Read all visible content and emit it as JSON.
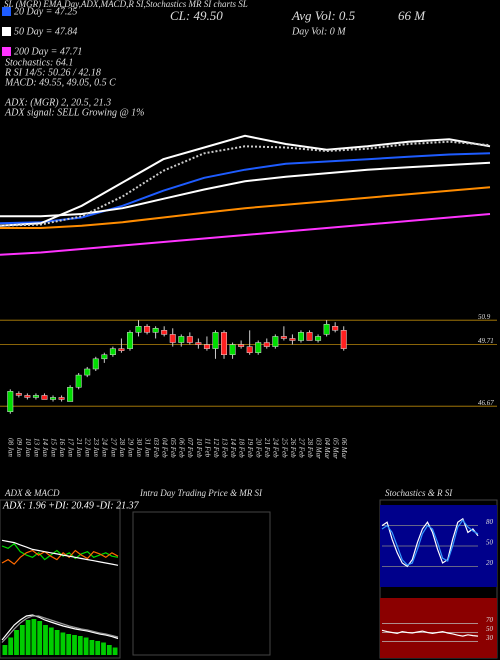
{
  "header": {
    "title": "SL (MGR) EMA,Day,ADX,MACD,R SI,Stochastics MR SI charts SL",
    "close": "CL: 49.50",
    "avg_volume": "Avg Vol: 0.5",
    "avg_volume_unit": "66  M",
    "day_volume": "Day Vol: 0  M",
    "stochastics": "Stochastics: 64.1",
    "rsi": "R          SI 14/5: 50.26 / 42.18",
    "macd": "MACD: 49.55, 49.05, 0.5 C",
    "adx": "ADX:                 (MGR) 2, 20.5, 21.3",
    "adx_signal": "ADX  signal: SELL Growing @ 1%",
    "intraday_title": "Intra Day Trading Price  & MR         SI"
  },
  "chart_data": [
    {
      "type": "line",
      "ylim": [
        40,
        52
      ],
      "series": [
        {
          "name": "20 Day = 47.25",
          "color": "#1e5cff",
          "values": [
            44.0,
            44.1,
            44.5,
            45.5,
            46.8,
            47.9,
            48.6,
            49.1,
            49.3,
            49.5,
            49.7,
            49.9,
            50.0
          ]
        },
        {
          "name": "50 Day = 47.84",
          "color": "#ffffff",
          "values": [
            44.6,
            44.6,
            44.8,
            45.3,
            46.1,
            46.9,
            47.6,
            48.0,
            48.3,
            48.6,
            48.8,
            49.0,
            49.2
          ]
        },
        {
          "name": "200 Day = 47.71",
          "color": "#ff33ff",
          "values": [
            41.3,
            41.5,
            41.8,
            42.1,
            42.4,
            42.7,
            43.0,
            43.3,
            43.6,
            43.9,
            44.2,
            44.5,
            44.8
          ]
        },
        {
          "color": "#ffffff",
          "values": [
            43.8,
            44.0,
            45.5,
            47.5,
            49.5,
            50.5,
            51.5,
            50.8,
            50.3,
            50.6,
            51.0,
            51.2,
            50.6
          ]
        },
        {
          "color": "#cccccc",
          "style": "dotted",
          "values": [
            43.8,
            43.9,
            44.6,
            46.3,
            48.5,
            50.0,
            50.6,
            50.5,
            50.2,
            50.4,
            50.8,
            51.0,
            50.7
          ]
        },
        {
          "color": "#ff8c00",
          "values": [
            43.6,
            43.6,
            43.8,
            44.1,
            44.5,
            44.9,
            45.3,
            45.6,
            45.9,
            46.2,
            46.5,
            46.8,
            47.1
          ]
        }
      ]
    },
    {
      "type": "candlestick",
      "ylim": [
        45.5,
        51.4
      ],
      "yticks": [
        50.9,
        49.71,
        46.67
      ],
      "grid_color": "#b8860b",
      "up_color": "#00dd00",
      "down_color": "#ff2020",
      "categories": [
        "08 Jan",
        "09 Jan",
        "10 Jan",
        "13 Jan",
        "14 Jan",
        "15 Jan",
        "16 Jan",
        "17 Jan",
        "21 Jan",
        "22 Jan",
        "23 Jan",
        "24 Jan",
        "27 Jan",
        "28 Jan",
        "29 Jan",
        "30 Jan",
        "31 Jan",
        "03 Feb",
        "04 Feb",
        "05 Feb",
        "06 Feb",
        "07 Feb",
        "10 Feb",
        "11 Feb",
        "12 Feb",
        "13 Feb",
        "14 Feb",
        "18 Feb",
        "19 Feb",
        "20 Feb",
        "21 Feb",
        "24 Feb",
        "25 Feb",
        "26 Feb",
        "27 Feb",
        "28 Feb",
        "03 Mar",
        "04 Mar",
        "05 Mar",
        "06 Mar"
      ],
      "open": [
        46.4,
        47.3,
        47.2,
        47.1,
        47.2,
        47.0,
        47.1,
        46.9,
        47.6,
        48.2,
        48.5,
        49.0,
        49.2,
        49.5,
        49.5,
        50.3,
        50.6,
        50.3,
        50.4,
        50.2,
        49.8,
        50.1,
        49.8,
        49.7,
        49.5,
        50.3,
        49.2,
        49.7,
        49.6,
        49.3,
        49.8,
        49.6,
        50.1,
        50.0,
        49.9,
        50.3,
        49.9,
        50.2,
        50.6,
        50.4
      ],
      "high": [
        47.5,
        47.4,
        47.3,
        47.3,
        47.3,
        47.2,
        47.2,
        47.7,
        48.3,
        48.6,
        49.1,
        49.3,
        49.6,
        50.0,
        50.4,
        50.9,
        50.7,
        50.6,
        50.6,
        50.5,
        50.2,
        50.3,
        50.0,
        50.1,
        50.4,
        50.4,
        49.8,
        49.9,
        50.4,
        49.9,
        50.0,
        50.2,
        50.6,
        50.2,
        50.4,
        50.4,
        50.2,
        50.9,
        50.8,
        50.6
      ],
      "low": [
        46.3,
        47.1,
        47.0,
        47.0,
        47.0,
        46.9,
        46.9,
        46.9,
        47.5,
        48.1,
        48.4,
        48.8,
        49.1,
        49.3,
        49.4,
        50.1,
        50.2,
        50.0,
        50.1,
        49.6,
        49.6,
        49.7,
        49.5,
        49.4,
        49.0,
        49.0,
        49.0,
        49.5,
        49.2,
        49.2,
        49.5,
        49.5,
        49.9,
        49.7,
        49.8,
        49.9,
        49.8,
        50.1,
        50.3,
        49.4
      ],
      "close": [
        47.4,
        47.2,
        47.1,
        47.2,
        47.0,
        47.1,
        47.0,
        47.6,
        48.2,
        48.5,
        49.0,
        49.2,
        49.5,
        49.4,
        50.3,
        50.6,
        50.3,
        50.5,
        50.2,
        49.8,
        50.1,
        49.8,
        49.7,
        49.5,
        50.3,
        49.2,
        49.7,
        49.6,
        49.3,
        49.8,
        49.6,
        50.1,
        50.0,
        49.9,
        50.3,
        49.9,
        50.1,
        50.7,
        50.4,
        49.5
      ]
    },
    {
      "type": "line",
      "title": "ADX  & MACD",
      "annotation": "ADX: 1.96  +DI: 20.49  -DI: 21.37",
      "ylim": [
        0,
        60
      ],
      "series": [
        {
          "color": "#00dd00",
          "values": [
            30,
            28,
            32,
            25,
            22,
            20,
            24,
            18,
            22,
            26,
            21,
            24,
            19,
            23,
            25,
            20,
            22,
            24,
            21,
            20
          ]
        },
        {
          "color": "#ff6a00",
          "values": [
            15,
            18,
            14,
            20,
            24,
            26,
            22,
            25,
            21,
            18,
            24,
            20,
            26,
            22,
            19,
            25,
            23,
            20,
            24,
            21
          ]
        },
        {
          "color": "#ffffff",
          "values": [
            35,
            34,
            33,
            31,
            29,
            27,
            26,
            25,
            24,
            23,
            22,
            21,
            20,
            19,
            18,
            17,
            16,
            15,
            14,
            13
          ]
        }
      ]
    },
    {
      "type": "bar",
      "ylim": [
        0,
        1
      ],
      "color": "#00cc00",
      "values": [
        0.2,
        0.35,
        0.5,
        0.6,
        0.7,
        0.72,
        0.68,
        0.6,
        0.55,
        0.5,
        0.45,
        0.42,
        0.4,
        0.38,
        0.35,
        0.3,
        0.28,
        0.25,
        0.2,
        0.15
      ],
      "series": [
        {
          "color": "#ffffff",
          "values": [
            0.3,
            0.45,
            0.6,
            0.7,
            0.78,
            0.8,
            0.76,
            0.7,
            0.66,
            0.62,
            0.58,
            0.55,
            0.52,
            0.5,
            0.48,
            0.45,
            0.42,
            0.4,
            0.37,
            0.33
          ]
        },
        {
          "color": "#999999",
          "values": [
            0.25,
            0.38,
            0.52,
            0.64,
            0.73,
            0.78,
            0.78,
            0.74,
            0.7,
            0.66,
            0.62,
            0.58,
            0.55,
            0.52,
            0.5,
            0.47,
            0.44,
            0.42,
            0.39,
            0.36
          ]
        }
      ]
    },
    {
      "type": "line",
      "title": "Stochastics & R          SI",
      "ylim": [
        0,
        100
      ],
      "yticks": [
        80,
        50,
        20
      ],
      "background": "#00008b",
      "grid_color": "#888888",
      "series": [
        {
          "color": "#ffffff",
          "values": [
            80,
            85,
            60,
            40,
            25,
            20,
            30,
            55,
            75,
            85,
            70,
            45,
            25,
            30,
            60,
            85,
            90,
            70,
            75,
            65
          ]
        },
        {
          "color": "#3399ff",
          "values": [
            75,
            80,
            70,
            50,
            30,
            22,
            25,
            45,
            68,
            80,
            75,
            55,
            32,
            28,
            50,
            78,
            88,
            78,
            72,
            68
          ]
        }
      ]
    },
    {
      "type": "line",
      "ylim": [
        0,
        100
      ],
      "yticks": [
        70,
        50,
        30
      ],
      "background": "#8b0000",
      "grid_color": "#bbbbbb",
      "series": [
        {
          "color": "#ffffff",
          "values": [
            55,
            52,
            50,
            48,
            52,
            50,
            49,
            51,
            53,
            50,
            48,
            50,
            52,
            49,
            47,
            44,
            42,
            45,
            43,
            42
          ]
        }
      ]
    }
  ]
}
